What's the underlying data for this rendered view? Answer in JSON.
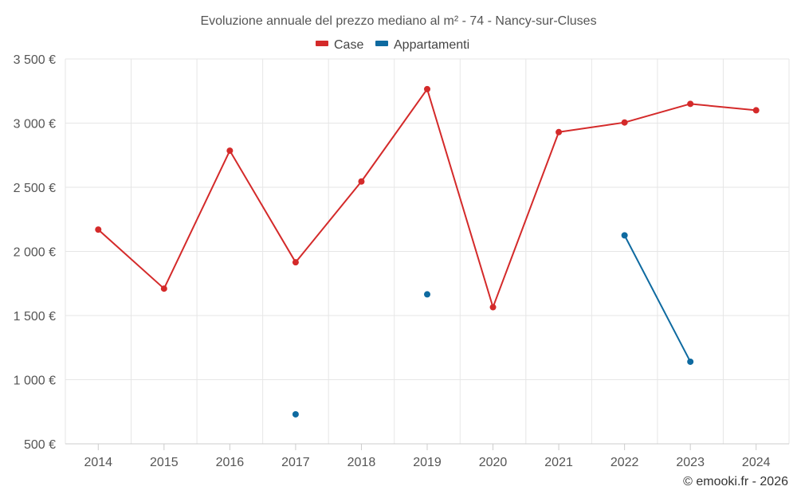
{
  "chart_data": {
    "type": "line",
    "title": "Evoluzione annuale del prezzo mediano al m² - 74 - Nancy-sur-Cluses",
    "x": [
      "2014",
      "2015",
      "2016",
      "2017",
      "2018",
      "2019",
      "2020",
      "2021",
      "2022",
      "2023",
      "2024"
    ],
    "ylim": [
      500,
      3500
    ],
    "yticks": [
      500,
      1000,
      1500,
      2000,
      2500,
      3000,
      3500
    ],
    "ytick_labels": [
      "500 €",
      "1 000 €",
      "1 500 €",
      "2 000 €",
      "2 500 €",
      "3 000 €",
      "3 500 €"
    ],
    "grid": true,
    "legend_position": "top-center",
    "series": [
      {
        "name": "Case",
        "color": "#d42a2a",
        "values": [
          2170,
          1710,
          2785,
          1915,
          2545,
          3265,
          1565,
          2930,
          3005,
          3150,
          3100
        ]
      },
      {
        "name": "Appartamenti",
        "color": "#0e6aa0",
        "values": [
          null,
          null,
          null,
          730,
          null,
          1665,
          null,
          null,
          2125,
          1140,
          null
        ]
      }
    ],
    "credit": "© emooki.fr - 2026"
  }
}
